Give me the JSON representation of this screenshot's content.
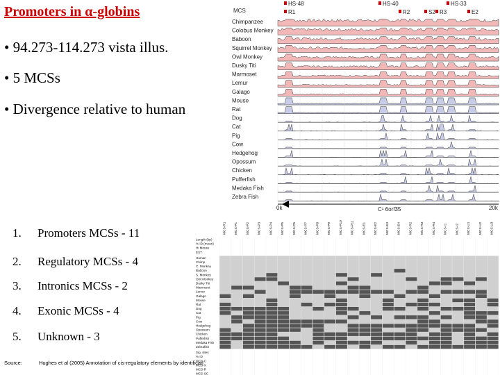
{
  "slide": {
    "title": "Promoters in α-globins",
    "bullets": [
      "• 94.273-114.273 vista illus.",
      "• 5 MCSs",
      "• Divergence relative to human"
    ],
    "numbered": [
      {
        "num": "1.",
        "text": "Promoters MCSs - 11"
      },
      {
        "num": "2.",
        "text": "Regulatory MCSs - 4"
      },
      {
        "num": "3.",
        "text": "Intronics MCSs - 2"
      },
      {
        "num": "4.",
        "text": "Exonic MCSs - 4"
      },
      {
        "num": "5.",
        "text": "Unknown - 3"
      }
    ],
    "source_label": "Source:",
    "source_text": "Hughes et al (2005) Annotation of cis-regulatory elements by identificati"
  },
  "vista": {
    "mcs_label": "MCS",
    "markers": [
      "HS-48",
      "R1",
      "HS-40",
      "R2",
      "S2",
      "R3",
      "HS-33",
      "E2"
    ],
    "species": [
      "Chimpanzee",
      "Colobus Monkey",
      "Baboon",
      "Squirrel Monkey",
      "Owl Monkey",
      "Dusky Titi",
      "Marmoset",
      "Lemur",
      "Galago",
      "Mouse",
      "Rat",
      "Dog",
      "Cat",
      "Pig",
      "Cow",
      "Hedgehog",
      "Opossum",
      "Chicken",
      "Pufferfish",
      "Medaka Fish",
      "Zebra Fish"
    ],
    "axis_start": "0k",
    "axis_end": "20k",
    "gene_label": "C¹ 6orf35"
  },
  "table": {
    "columns": [
      "MCS-R1",
      "MCS-P1",
      "MCS-P2",
      "MCS-P3",
      "MCS-P4",
      "MCS-P5",
      "MCS-P6",
      "MCS-P7",
      "MCS-P8",
      "MCS-P9",
      "MCS-P10",
      "MCS-P11",
      "MCS-E1",
      "MCS-E2",
      "MCS-E3",
      "MCS-E4",
      "MCS-R2",
      "MCS-R3",
      "MCS-R4",
      "MCS-I1",
      "MCS-I2",
      "MCS-U1",
      "MCS-U2",
      "MCS-U3"
    ],
    "top_rows": [
      "Length (bp)",
      "% ID (mean)",
      "Hi Mouse",
      "EST"
    ],
    "species_rows": [
      "Human",
      "Chimp",
      "C. Monkey",
      "Baboon",
      "S. Monkey",
      "Owl Monkey",
      "Dusky Titi",
      "Marmoset",
      "Lemur",
      "Galago",
      "Mouse",
      "Rat",
      "Dog",
      "Cat",
      "Pig",
      "Cow",
      "Hedgehog",
      "Opossum",
      "Chicken",
      "Pufferfish",
      "Medaka Fish",
      "Zebrafish"
    ],
    "bottom_rows": [
      "Sig. sites",
      "% ID",
      "MCS-C",
      "MCS-X",
      "MCS-R",
      "MCS-SC"
    ]
  }
}
